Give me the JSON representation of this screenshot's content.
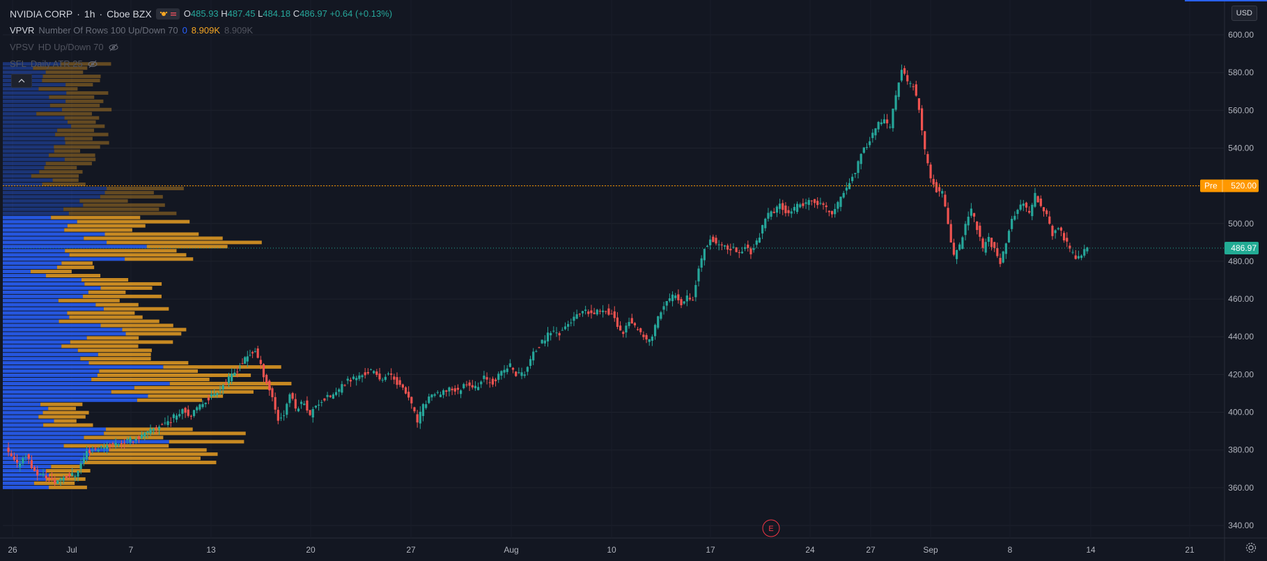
{
  "header": {
    "symbol": "NVIDIA CORP",
    "interval": "1h",
    "exchange": "Cboe BZX",
    "ohlc": {
      "open_label": "O",
      "open": "485.93",
      "high_label": "H",
      "high": "487.45",
      "low_label": "L",
      "low": "484.18",
      "close_label": "C",
      "close": "486.97",
      "change": "+0.64 (+0.13%)"
    }
  },
  "indicators": [
    {
      "name": "VPVR",
      "params": "Number Of Rows 100 Up/Down 70",
      "v1": "0",
      "v2": "8.909K",
      "v3": "8.909K"
    },
    {
      "name": "VPSV",
      "params": "HD Up/Down 70"
    },
    {
      "name": "SFL",
      "params": "Daily ATR 25"
    }
  ],
  "currency_button": "USD",
  "event_marker": "E",
  "colors": {
    "background": "#131722",
    "up": "#26a69a",
    "down": "#ef5350",
    "volume_up": "#2962ff",
    "volume_down": "#f5a623",
    "pre_market": "#ff9800",
    "last_price": "#22ab94"
  },
  "chart_data": {
    "type": "candlestick",
    "y_axis": {
      "ticks": [
        340,
        360,
        380,
        400,
        420,
        440,
        460,
        480,
        500,
        520,
        540,
        560,
        580,
        600
      ],
      "tick_labels": [
        "340.00",
        "360.00",
        "380.00",
        "400.00",
        "420.00",
        "440.00",
        "460.00",
        "480.00",
        "500.00",
        "520.00",
        "540.00",
        "560.00",
        "580.00",
        "600.00"
      ],
      "range": [
        334,
        610
      ],
      "position": "right"
    },
    "x_axis": {
      "tick_labels": [
        "26",
        "Jul",
        "7",
        "13",
        "20",
        "27",
        "Aug",
        "10",
        "17",
        "24",
        "27",
        "Sep",
        "8",
        "14",
        "21"
      ]
    },
    "price_markers": [
      {
        "label": "Pre",
        "value": "520.00",
        "y": 520
      },
      {
        "label": "",
        "value": "486.97",
        "y": 486.97
      }
    ],
    "price_path": [
      [
        0,
        380
      ],
      [
        8,
        372
      ],
      [
        14,
        378
      ],
      [
        20,
        368
      ],
      [
        28,
        366
      ],
      [
        34,
        363
      ],
      [
        40,
        366
      ],
      [
        48,
        367
      ],
      [
        56,
        379
      ],
      [
        64,
        381
      ],
      [
        72,
        383
      ],
      [
        80,
        384
      ],
      [
        90,
        386
      ],
      [
        98,
        389
      ],
      [
        106,
        393
      ],
      [
        114,
        396
      ],
      [
        122,
        402
      ],
      [
        128,
        398
      ],
      [
        136,
        405
      ],
      [
        144,
        410
      ],
      [
        152,
        416
      ],
      [
        158,
        421
      ],
      [
        165,
        428
      ],
      [
        172,
        433
      ],
      [
        178,
        420
      ],
      [
        184,
        408
      ],
      [
        188,
        396
      ],
      [
        192,
        399
      ],
      [
        196,
        410
      ],
      [
        200,
        402
      ],
      [
        206,
        406
      ],
      [
        210,
        398
      ],
      [
        214,
        404
      ],
      [
        220,
        407
      ],
      [
        228,
        410
      ],
      [
        236,
        417
      ],
      [
        244,
        419
      ],
      [
        252,
        422
      ],
      [
        258,
        418
      ],
      [
        266,
        420
      ],
      [
        272,
        414
      ],
      [
        278,
        408
      ],
      [
        284,
        395
      ],
      [
        288,
        403
      ],
      [
        294,
        410
      ],
      [
        300,
        409
      ],
      [
        306,
        413
      ],
      [
        312,
        411
      ],
      [
        318,
        416
      ],
      [
        324,
        413
      ],
      [
        330,
        418
      ],
      [
        336,
        416
      ],
      [
        342,
        421
      ],
      [
        348,
        425
      ],
      [
        352,
        420
      ],
      [
        358,
        421
      ],
      [
        364,
        431
      ],
      [
        370,
        437
      ],
      [
        376,
        443
      ],
      [
        382,
        442
      ],
      [
        388,
        447
      ],
      [
        394,
        451
      ],
      [
        400,
        453
      ],
      [
        406,
        452
      ],
      [
        412,
        455
      ],
      [
        418,
        452
      ],
      [
        422,
        446
      ],
      [
        426,
        442
      ],
      [
        430,
        449
      ],
      [
        434,
        445
      ],
      [
        438,
        441
      ],
      [
        442,
        438
      ],
      [
        446,
        440
      ],
      [
        450,
        451
      ],
      [
        454,
        456
      ],
      [
        458,
        460
      ],
      [
        462,
        463
      ],
      [
        466,
        458
      ],
      [
        470,
        462
      ],
      [
        474,
        460
      ],
      [
        478,
        476
      ],
      [
        482,
        487
      ],
      [
        486,
        492
      ],
      [
        490,
        490
      ],
      [
        494,
        488
      ],
      [
        498,
        486
      ],
      [
        502,
        487
      ],
      [
        506,
        484
      ],
      [
        510,
        488
      ],
      [
        514,
        485
      ],
      [
        518,
        490
      ],
      [
        522,
        498
      ],
      [
        526,
        505
      ],
      [
        530,
        506
      ],
      [
        534,
        510
      ],
      [
        538,
        507
      ],
      [
        542,
        506
      ],
      [
        546,
        509
      ],
      [
        550,
        510
      ],
      [
        554,
        511
      ],
      [
        558,
        512
      ],
      [
        562,
        510
      ],
      [
        566,
        508
      ],
      [
        570,
        505
      ],
      [
        574,
        510
      ],
      [
        578,
        517
      ],
      [
        582,
        522
      ],
      [
        586,
        528
      ],
      [
        590,
        536
      ],
      [
        594,
        542
      ],
      [
        598,
        548
      ],
      [
        602,
        553
      ],
      [
        606,
        554
      ],
      [
        610,
        551
      ],
      [
        614,
        568
      ],
      [
        618,
        582
      ],
      [
        622,
        575
      ],
      [
        626,
        573
      ],
      [
        630,
        560
      ],
      [
        634,
        538
      ],
      [
        638,
        524
      ],
      [
        642,
        518
      ],
      [
        646,
        516
      ],
      [
        650,
        500
      ],
      [
        654,
        482
      ],
      [
        658,
        488
      ],
      [
        662,
        500
      ],
      [
        666,
        507
      ],
      [
        670,
        498
      ],
      [
        674,
        486
      ],
      [
        678,
        492
      ],
      [
        682,
        486
      ],
      [
        686,
        480
      ],
      [
        690,
        490
      ],
      [
        694,
        502
      ],
      [
        698,
        508
      ],
      [
        702,
        510
      ],
      [
        706,
        505
      ],
      [
        710,
        515
      ],
      [
        714,
        510
      ],
      [
        718,
        505
      ],
      [
        722,
        494
      ],
      [
        726,
        498
      ],
      [
        730,
        492
      ],
      [
        734,
        486
      ],
      [
        738,
        482
      ],
      [
        742,
        484
      ],
      [
        746,
        487
      ]
    ],
    "volume_profile_note": "horizontal volume-by-price bars on left, up (blue) and down (orange) segments"
  }
}
